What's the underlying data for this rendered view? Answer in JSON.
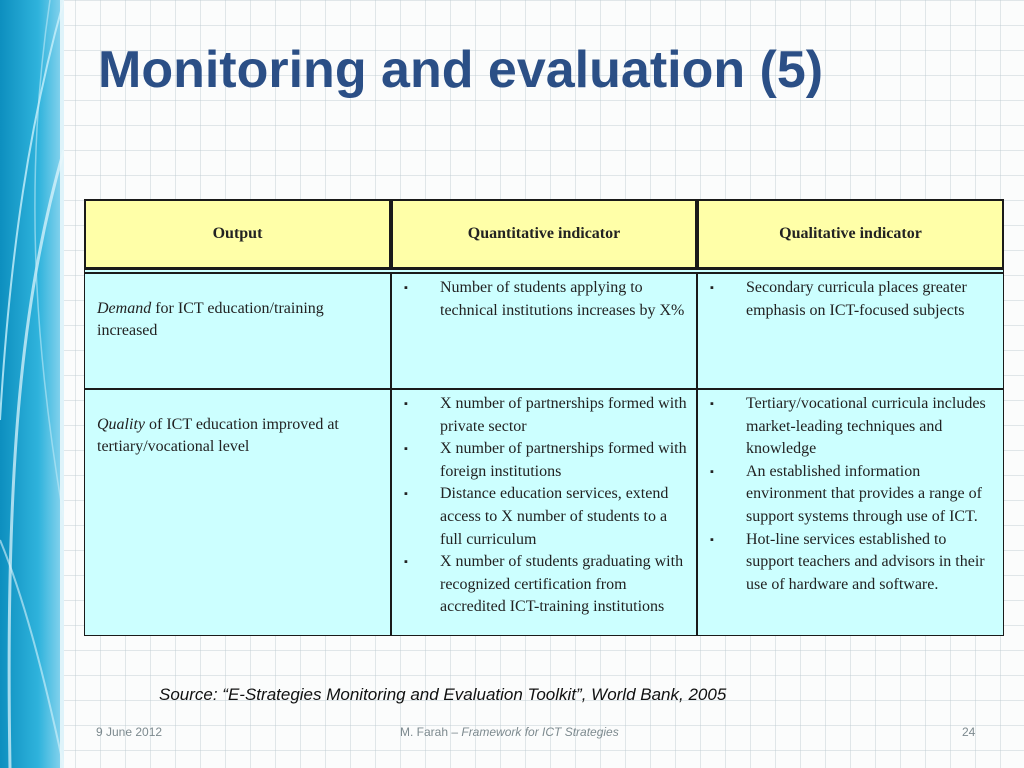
{
  "slide": {
    "title": "Monitoring and evaluation (5)"
  },
  "table": {
    "headers": [
      "Output",
      "Quantitative indicator",
      "Qualitative indicator"
    ],
    "rows": [
      {
        "output_em": "Demand",
        "output_rest": " for ICT education/training increased",
        "quantitative": [
          "Number of students applying to technical institutions increases by X%"
        ],
        "qualitative": [
          "Secondary curricula places greater emphasis on ICT-focused subjects"
        ]
      },
      {
        "output_em": "Quality",
        "output_rest": " of ICT education improved at tertiary/vocational level",
        "quantitative": [
          "X number of partnerships formed with private sector",
          "X number of partnerships formed with foreign institutions",
          "Distance education services, extend access to X number of students to a full curriculum",
          "X number of students graduating with recognized certification from accredited ICT-training institutions"
        ],
        "qualitative": [
          "Tertiary/vocational curricula includes market-leading techniques and knowledge",
          "An established information environment that provides a range of support systems through use of ICT.",
          "Hot-line services established to support teachers and advisors in their use of hardware and software."
        ]
      }
    ],
    "bullet_glyph": "▪"
  },
  "source": "Source: “E-Strategies Monitoring and Evaluation Toolkit”, World Bank, 2005",
  "footer": {
    "date": "9 June 2012",
    "author": "M. Farah – ",
    "work": "Framework for ICT Strategies",
    "page": "24"
  },
  "colors": {
    "title": "#2b4f86",
    "header_bg": "#ffffa8",
    "body_bg": "#ccffff",
    "side_band": "#1aa3cf"
  }
}
